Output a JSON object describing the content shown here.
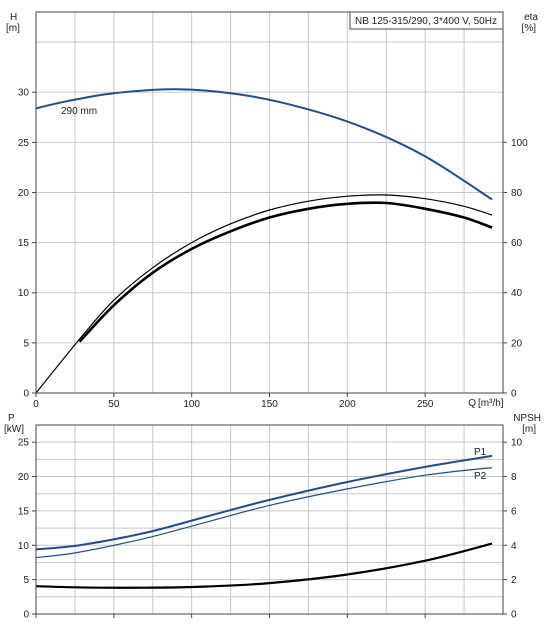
{
  "chart_data": [
    {
      "type": "line",
      "title": "NB 125-315/290, 3*400 V, 50Hz",
      "xlabel": "Q [m³/h]",
      "xlabel_q": "Q",
      "xlabel_unit": "[m³/h]",
      "ylabel_left": "H",
      "ylabel_left_unit": "[m]",
      "ylabel_right": "eta",
      "ylabel_right_unit": "[%]",
      "xlim": [
        0,
        300
      ],
      "ylim_left": [
        0,
        38
      ],
      "ylim_right": [
        0,
        152
      ],
      "x_ticks": [
        0,
        50,
        100,
        150,
        200,
        250
      ],
      "y_left_ticks": [
        0,
        5,
        10,
        15,
        20,
        25,
        30
      ],
      "y_right_ticks": [
        0,
        20,
        40,
        60,
        80,
        100
      ],
      "grid": true,
      "annotation": "290 mm",
      "series": [
        {
          "name": "290 mm",
          "axis": "left",
          "color": "#1f4e8c",
          "x": [
            0,
            20,
            50,
            90,
            130,
            170,
            210,
            250,
            293
          ],
          "y": [
            28.4,
            29.1,
            29.9,
            30.3,
            29.8,
            28.5,
            26.5,
            23.6,
            19.3
          ]
        },
        {
          "axis": "right",
          "color": "#000000",
          "x": [
            0,
            30,
            50,
            75,
            100,
            125,
            150,
            175,
            200,
            225,
            250,
            275,
            293
          ],
          "y": [
            0,
            23,
            37,
            50,
            60,
            67.5,
            73,
            76.5,
            78.5,
            79,
            77.5,
            74.5,
            71
          ]
        },
        {
          "axis": "right",
          "color": "#000000",
          "x": [
            28,
            50,
            75,
            100,
            125,
            150,
            175,
            200,
            225,
            250,
            275,
            293
          ],
          "y": [
            20.5,
            35,
            48,
            57.5,
            64.5,
            70,
            73.5,
            75.5,
            75.8,
            73.5,
            70,
            66
          ]
        }
      ]
    },
    {
      "type": "line",
      "xlim": [
        0,
        300
      ],
      "ylim_left": [
        0,
        27.5
      ],
      "ylim_right": [
        0,
        11
      ],
      "ylabel_left": "P",
      "ylabel_left_unit": "[kW]",
      "ylabel_right": "NPSH",
      "ylabel_right_unit": "[m]",
      "x_ticks": [
        0,
        50,
        100,
        150,
        200,
        250
      ],
      "y_left_ticks": [
        0,
        5,
        10,
        15,
        20,
        25
      ],
      "y_right_ticks": [
        0,
        2,
        4,
        6,
        8,
        10
      ],
      "grid": true,
      "series": [
        {
          "name": "P1",
          "axis": "left",
          "color": "#1f4e8c",
          "x": [
            0,
            28,
            70,
            110,
            150,
            200,
            250,
            293
          ],
          "y": [
            9.4,
            10.0,
            11.8,
            14.2,
            16.6,
            19.2,
            21.4,
            23.0
          ]
        },
        {
          "name": "P2",
          "axis": "left",
          "color": "#1f4e8c",
          "x": [
            0,
            28,
            70,
            110,
            150,
            200,
            250,
            293
          ],
          "y": [
            8.2,
            9.0,
            11.0,
            13.4,
            15.8,
            18.2,
            20.2,
            21.3
          ]
        },
        {
          "axis": "right",
          "color": "#000000",
          "x": [
            0,
            28,
            70,
            110,
            150,
            200,
            250,
            293
          ],
          "y": [
            1.62,
            1.55,
            1.53,
            1.6,
            1.8,
            2.3,
            3.1,
            4.1
          ]
        }
      ]
    }
  ]
}
